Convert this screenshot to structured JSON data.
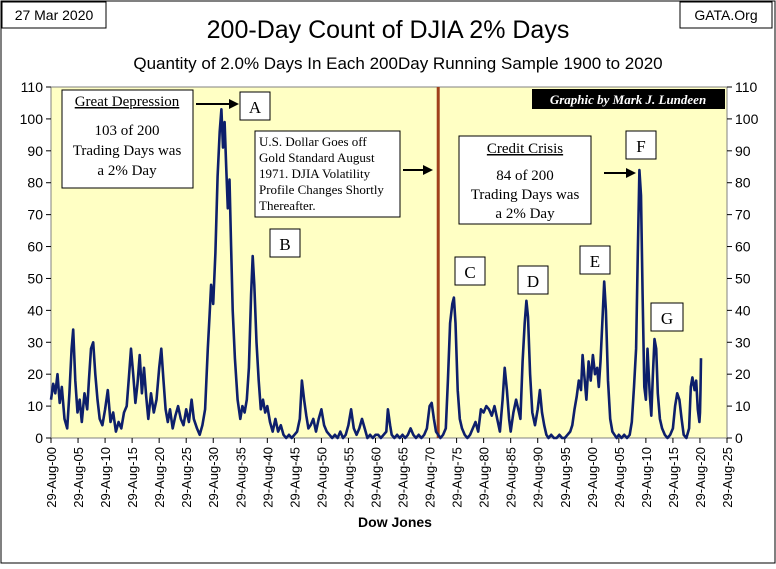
{
  "header": {
    "date": "27 Mar 2020",
    "source": "GATA.Org"
  },
  "chart_data": {
    "type": "line",
    "title": "200-Day Count of  DJIA 2% Days",
    "subtitle": "Quantity of 2.0% Days In Each 200Day Running Sample 1900 to 2020",
    "xlabel": "Dow Jones",
    "ylabel": "",
    "credit": "Graphic by Mark J. Lundeen",
    "ylim": [
      0,
      110
    ],
    "yticks": [
      0,
      10,
      20,
      30,
      40,
      50,
      60,
      70,
      80,
      90,
      100,
      110
    ],
    "xlim": [
      1900,
      2025
    ],
    "xtick_years": [
      1900,
      1905,
      1910,
      1915,
      1920,
      1925,
      1930,
      1935,
      1940,
      1945,
      1950,
      1955,
      1960,
      1965,
      1970,
      1975,
      1980,
      1985,
      1990,
      1995,
      2000,
      2005,
      2010,
      2015,
      2020,
      2025
    ],
    "xtick_labels": [
      "29-Aug-00",
      "29-Aug-05",
      "29-Aug-10",
      "29-Aug-15",
      "29-Aug-20",
      "29-Aug-25",
      "29-Aug-30",
      "29-Aug-35",
      "29-Aug-40",
      "29-Aug-45",
      "29-Aug-50",
      "29-Aug-55",
      "29-Aug-60",
      "29-Aug-65",
      "29-Aug-70",
      "29-Aug-75",
      "29-Aug-80",
      "29-Aug-85",
      "29-Aug-90",
      "29-Aug-95",
      "29-Aug-00",
      "29-Aug-05",
      "29-Aug-10",
      "29-Aug-15",
      "29-Aug-20",
      "29-Aug-25"
    ],
    "grid": false,
    "line_color": "#0d1f6b",
    "plot_background": "#ffffc4",
    "marker_line": {
      "x": 1971.6,
      "color": "#a0401c"
    },
    "series": [
      {
        "values": [
          [
            1900.0,
            12
          ],
          [
            1900.4,
            17
          ],
          [
            1900.8,
            14
          ],
          [
            1901.2,
            20
          ],
          [
            1901.6,
            11
          ],
          [
            1902.0,
            16
          ],
          [
            1902.5,
            6
          ],
          [
            1903.0,
            3
          ],
          [
            1903.4,
            14
          ],
          [
            1903.8,
            28
          ],
          [
            1904.1,
            34
          ],
          [
            1904.5,
            18
          ],
          [
            1904.9,
            8
          ],
          [
            1905.3,
            12
          ],
          [
            1905.7,
            5
          ],
          [
            1906.2,
            14
          ],
          [
            1906.7,
            9
          ],
          [
            1907.0,
            18
          ],
          [
            1907.4,
            28
          ],
          [
            1907.8,
            30
          ],
          [
            1908.2,
            20
          ],
          [
            1908.6,
            12
          ],
          [
            1909.0,
            6
          ],
          [
            1909.5,
            4
          ],
          [
            1910.0,
            9
          ],
          [
            1910.5,
            15
          ],
          [
            1911.0,
            5
          ],
          [
            1911.5,
            8
          ],
          [
            1912.0,
            2
          ],
          [
            1912.5,
            5
          ],
          [
            1913.0,
            3
          ],
          [
            1913.5,
            8
          ],
          [
            1914.0,
            10
          ],
          [
            1914.4,
            19
          ],
          [
            1914.8,
            28
          ],
          [
            1915.2,
            20
          ],
          [
            1915.6,
            11
          ],
          [
            1916.0,
            17
          ],
          [
            1916.4,
            26
          ],
          [
            1916.8,
            14
          ],
          [
            1917.2,
            22
          ],
          [
            1917.6,
            13
          ],
          [
            1918.0,
            6
          ],
          [
            1918.5,
            14
          ],
          [
            1919.0,
            8
          ],
          [
            1919.5,
            12
          ],
          [
            1920.0,
            22
          ],
          [
            1920.4,
            28
          ],
          [
            1920.8,
            18
          ],
          [
            1921.2,
            9
          ],
          [
            1921.6,
            5
          ],
          [
            1922.0,
            9
          ],
          [
            1922.5,
            3
          ],
          [
            1923.0,
            7
          ],
          [
            1923.5,
            10
          ],
          [
            1924.0,
            6
          ],
          [
            1924.5,
            4
          ],
          [
            1925.0,
            9
          ],
          [
            1925.5,
            5
          ],
          [
            1926.0,
            12
          ],
          [
            1926.4,
            6
          ],
          [
            1927.0,
            3
          ],
          [
            1927.5,
            1
          ],
          [
            1928.0,
            4
          ],
          [
            1928.5,
            9
          ],
          [
            1929.0,
            28
          ],
          [
            1929.3,
            38
          ],
          [
            1929.6,
            48
          ],
          [
            1930.0,
            42
          ],
          [
            1930.4,
            58
          ],
          [
            1930.8,
            82
          ],
          [
            1931.2,
            96
          ],
          [
            1931.5,
            103
          ],
          [
            1931.8,
            91
          ],
          [
            1932.1,
            99
          ],
          [
            1932.4,
            85
          ],
          [
            1932.7,
            72
          ],
          [
            1933.0,
            81
          ],
          [
            1933.3,
            60
          ],
          [
            1933.6,
            40
          ],
          [
            1934.0,
            25
          ],
          [
            1934.5,
            12
          ],
          [
            1935.0,
            6
          ],
          [
            1935.4,
            10
          ],
          [
            1935.8,
            8
          ],
          [
            1936.2,
            12
          ],
          [
            1936.6,
            22
          ],
          [
            1937.0,
            45
          ],
          [
            1937.3,
            57
          ],
          [
            1937.6,
            48
          ],
          [
            1938.0,
            30
          ],
          [
            1938.4,
            18
          ],
          [
            1938.8,
            9
          ],
          [
            1939.2,
            12
          ],
          [
            1939.6,
            8
          ],
          [
            1940.0,
            10
          ],
          [
            1940.5,
            5
          ],
          [
            1941.0,
            2
          ],
          [
            1941.5,
            6
          ],
          [
            1942.0,
            2
          ],
          [
            1942.5,
            4
          ],
          [
            1943.0,
            1
          ],
          [
            1943.5,
            0
          ],
          [
            1944.0,
            1
          ],
          [
            1944.5,
            0
          ],
          [
            1945.0,
            1
          ],
          [
            1945.5,
            2
          ],
          [
            1946.0,
            6
          ],
          [
            1946.4,
            18
          ],
          [
            1946.8,
            12
          ],
          [
            1947.2,
            7
          ],
          [
            1947.6,
            3
          ],
          [
            1948.0,
            4
          ],
          [
            1948.5,
            6
          ],
          [
            1949.0,
            2
          ],
          [
            1949.5,
            6
          ],
          [
            1950.0,
            9
          ],
          [
            1950.5,
            4
          ],
          [
            1951.0,
            2
          ],
          [
            1951.5,
            1
          ],
          [
            1952.0,
            0
          ],
          [
            1952.5,
            1
          ],
          [
            1953.0,
            0
          ],
          [
            1953.5,
            2
          ],
          [
            1954.0,
            0
          ],
          [
            1954.5,
            1
          ],
          [
            1955.0,
            4
          ],
          [
            1955.5,
            9
          ],
          [
            1956.0,
            3
          ],
          [
            1956.5,
            1
          ],
          [
            1957.0,
            3
          ],
          [
            1957.5,
            6
          ],
          [
            1958.0,
            3
          ],
          [
            1958.5,
            0
          ],
          [
            1959.0,
            1
          ],
          [
            1959.5,
            0
          ],
          [
            1960.0,
            1
          ],
          [
            1960.5,
            1
          ],
          [
            1961.0,
            0
          ],
          [
            1961.5,
            1
          ],
          [
            1962.0,
            2
          ],
          [
            1962.3,
            9
          ],
          [
            1962.7,
            4
          ],
          [
            1963.0,
            1
          ],
          [
            1963.5,
            0
          ],
          [
            1964.0,
            1
          ],
          [
            1964.5,
            0
          ],
          [
            1965.0,
            1
          ],
          [
            1965.5,
            0
          ],
          [
            1966.0,
            1
          ],
          [
            1966.5,
            3
          ],
          [
            1967.0,
            1
          ],
          [
            1967.5,
            0
          ],
          [
            1968.0,
            1
          ],
          [
            1968.5,
            0
          ],
          [
            1969.0,
            1
          ],
          [
            1969.5,
            3
          ],
          [
            1970.0,
            10
          ],
          [
            1970.4,
            11
          ],
          [
            1970.8,
            6
          ],
          [
            1971.2,
            2
          ],
          [
            1971.6,
            1
          ],
          [
            1972.0,
            0
          ],
          [
            1972.5,
            1
          ],
          [
            1973.0,
            3
          ],
          [
            1973.4,
            18
          ],
          [
            1973.8,
            36
          ],
          [
            1974.2,
            42
          ],
          [
            1974.5,
            44
          ],
          [
            1974.8,
            36
          ],
          [
            1975.2,
            15
          ],
          [
            1975.6,
            6
          ],
          [
            1976.0,
            3
          ],
          [
            1976.5,
            1
          ],
          [
            1977.0,
            0
          ],
          [
            1977.5,
            1
          ],
          [
            1978.0,
            3
          ],
          [
            1978.5,
            5
          ],
          [
            1979.0,
            2
          ],
          [
            1979.5,
            9
          ],
          [
            1980.0,
            8
          ],
          [
            1980.5,
            10
          ],
          [
            1981.0,
            9
          ],
          [
            1981.5,
            7
          ],
          [
            1982.0,
            10
          ],
          [
            1982.5,
            6
          ],
          [
            1983.0,
            2
          ],
          [
            1983.5,
            12
          ],
          [
            1983.9,
            22
          ],
          [
            1984.3,
            15
          ],
          [
            1984.7,
            6
          ],
          [
            1985.0,
            2
          ],
          [
            1985.5,
            8
          ],
          [
            1986.0,
            12
          ],
          [
            1986.4,
            9
          ],
          [
            1986.8,
            6
          ],
          [
            1987.2,
            24
          ],
          [
            1987.6,
            36
          ],
          [
            1987.9,
            43
          ],
          [
            1988.2,
            38
          ],
          [
            1988.6,
            20
          ],
          [
            1989.0,
            8
          ],
          [
            1989.5,
            4
          ],
          [
            1990.0,
            9
          ],
          [
            1990.4,
            15
          ],
          [
            1990.8,
            8
          ],
          [
            1991.2,
            4
          ],
          [
            1991.6,
            1
          ],
          [
            1992.0,
            0
          ],
          [
            1992.5,
            1
          ],
          [
            1993.0,
            0
          ],
          [
            1993.5,
            0
          ],
          [
            1994.0,
            1
          ],
          [
            1994.5,
            0
          ],
          [
            1995.0,
            0
          ],
          [
            1995.5,
            1
          ],
          [
            1996.0,
            2
          ],
          [
            1996.4,
            4
          ],
          [
            1996.8,
            9
          ],
          [
            1997.2,
            13
          ],
          [
            1997.6,
            18
          ],
          [
            1998.0,
            15
          ],
          [
            1998.3,
            26
          ],
          [
            1998.6,
            20
          ],
          [
            1999.0,
            12
          ],
          [
            1999.4,
            24
          ],
          [
            1999.8,
            18
          ],
          [
            2000.2,
            26
          ],
          [
            2000.6,
            20
          ],
          [
            2001.0,
            22
          ],
          [
            2001.3,
            16
          ],
          [
            2001.6,
            24
          ],
          [
            2002.0,
            38
          ],
          [
            2002.3,
            49
          ],
          [
            2002.6,
            40
          ],
          [
            2003.0,
            18
          ],
          [
            2003.4,
            6
          ],
          [
            2003.8,
            2
          ],
          [
            2004.2,
            1
          ],
          [
            2004.6,
            0
          ],
          [
            2005.0,
            1
          ],
          [
            2005.5,
            0
          ],
          [
            2006.0,
            1
          ],
          [
            2006.5,
            0
          ],
          [
            2007.0,
            1
          ],
          [
            2007.4,
            5
          ],
          [
            2007.8,
            16
          ],
          [
            2008.2,
            28
          ],
          [
            2008.5,
            58
          ],
          [
            2008.8,
            84
          ],
          [
            2009.1,
            76
          ],
          [
            2009.4,
            45
          ],
          [
            2009.7,
            16
          ],
          [
            2010.0,
            12
          ],
          [
            2010.3,
            28
          ],
          [
            2010.7,
            14
          ],
          [
            2011.0,
            7
          ],
          [
            2011.3,
            20
          ],
          [
            2011.6,
            31
          ],
          [
            2011.9,
            28
          ],
          [
            2012.2,
            14
          ],
          [
            2012.6,
            6
          ],
          [
            2013.0,
            3
          ],
          [
            2013.5,
            1
          ],
          [
            2014.0,
            0
          ],
          [
            2014.5,
            1
          ],
          [
            2015.0,
            3
          ],
          [
            2015.4,
            10
          ],
          [
            2015.8,
            14
          ],
          [
            2016.2,
            12
          ],
          [
            2016.6,
            6
          ],
          [
            2017.0,
            1
          ],
          [
            2017.5,
            0
          ],
          [
            2018.0,
            3
          ],
          [
            2018.3,
            16
          ],
          [
            2018.6,
            19
          ],
          [
            2019.0,
            15
          ],
          [
            2019.3,
            18
          ],
          [
            2019.6,
            9
          ],
          [
            2019.9,
            5
          ],
          [
            2020.0,
            8
          ],
          [
            2020.1,
            15
          ],
          [
            2020.2,
            25
          ]
        ]
      }
    ],
    "annotations": [
      {
        "id": "great-depression",
        "title": "Great Depression",
        "lines": [
          "103 of 200",
          "Trading Days was",
          "a 2% Day"
        ]
      },
      {
        "id": "us-dollar",
        "lines": [
          "U.S. Dollar Goes off",
          "Gold Standard August",
          "1971.  DJIA Volatility",
          "Profile Changes Shortly",
          "Thereafter."
        ]
      },
      {
        "id": "credit-crisis",
        "title": "Credit Crisis",
        "lines": [
          "84 of 200",
          "Trading Days was",
          "a 2% Day"
        ]
      }
    ],
    "point_labels": [
      {
        "letter": "A",
        "x": 1931.5,
        "y": 103
      },
      {
        "letter": "B",
        "x": 1937.3,
        "y": 57
      },
      {
        "letter": "C",
        "x": 1974.5,
        "y": 44
      },
      {
        "letter": "D",
        "x": 1987.9,
        "y": 43
      },
      {
        "letter": "E",
        "x": 2002.3,
        "y": 49
      },
      {
        "letter": "F",
        "x": 2008.8,
        "y": 84
      },
      {
        "letter": "G",
        "x": 2011.6,
        "y": 31
      }
    ]
  }
}
